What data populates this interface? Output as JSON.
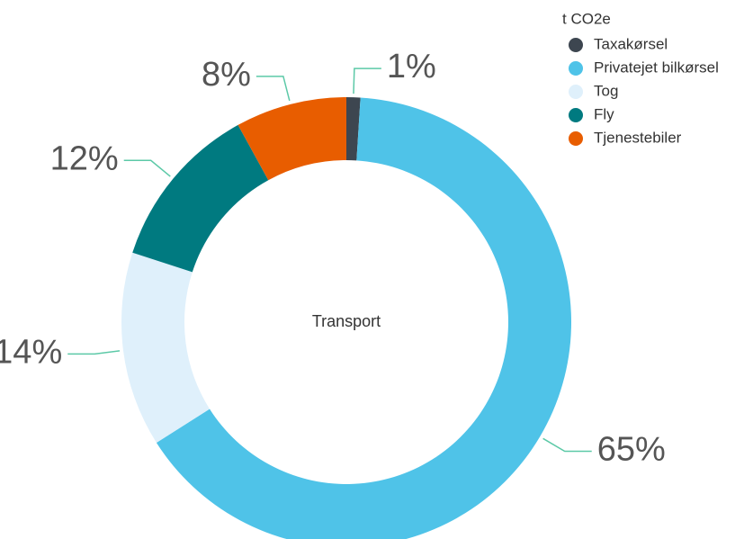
{
  "chart_data": {
    "type": "donut",
    "legend_title": "t CO2e",
    "center_label": "Transport",
    "categories": [
      "Taxakørsel",
      "Privatejet bilkørsel",
      "Tog",
      "Fly",
      "Tjenestebiler"
    ],
    "values": [
      1,
      65,
      14,
      12,
      8
    ],
    "value_labels": [
      "1%",
      "65%",
      "14%",
      "12%",
      "8%"
    ],
    "colors": [
      "#3d4650",
      "#4fc3e8",
      "#dff0fb",
      "#007a80",
      "#e85d00"
    ],
    "legend": "top-right"
  }
}
